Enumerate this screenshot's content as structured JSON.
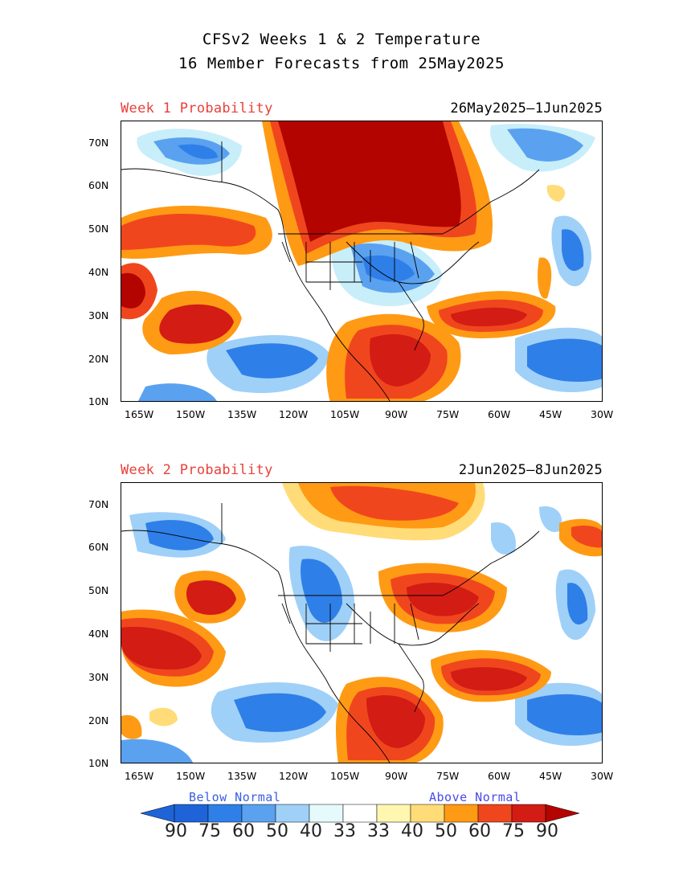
{
  "title": {
    "line1": "CFSv2 Weeks 1 & 2 Temperature",
    "line2": "16 Member Forecasts from 25May2025"
  },
  "panels": [
    {
      "label": "Week 1 Probability",
      "dates": "26May2025—1Jun2025"
    },
    {
      "label": "Week 2 Probability",
      "dates": "2Jun2025—8Jun2025"
    }
  ],
  "axes": {
    "lat_ticks": [
      "70N",
      "60N",
      "50N",
      "40N",
      "30N",
      "20N",
      "10N"
    ],
    "lon_ticks": [
      "165W",
      "150W",
      "135W",
      "120W",
      "105W",
      "90W",
      "75W",
      "60W",
      "45W",
      "30W"
    ]
  },
  "colorbar": {
    "below_label": "Below Normal",
    "above_label": "Above Normal",
    "numbers": [
      "90",
      "75",
      "60",
      "50",
      "40",
      "33",
      "33",
      "40",
      "50",
      "60",
      "75",
      "90"
    ],
    "colors": {
      "below": [
        "#1e64d8",
        "#2f7fe8",
        "#5aa2f0",
        "#9fd0f8",
        "#c8eefa",
        "#e6fafc"
      ],
      "above": [
        "#fff6b0",
        "#ffdc78",
        "#ff9a14",
        "#f0461e",
        "#d31c14",
        "#b40400"
      ],
      "neutral": "#ffffff"
    }
  }
}
